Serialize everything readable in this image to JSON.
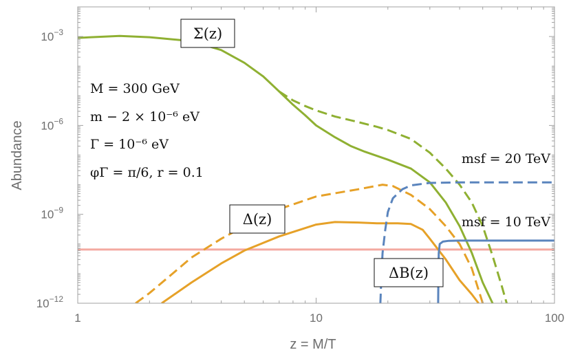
{
  "chart_data": {
    "type": "line",
    "title": "",
    "xlabel": "z = M/T",
    "ylabel": "Abundance",
    "xscale": "log",
    "yscale": "log",
    "xlim": [
      1,
      100
    ],
    "ylim": [
      1e-12,
      0.01
    ],
    "x_ticks": [
      {
        "value": 1,
        "label": "1"
      },
      {
        "value": 10,
        "label": "10"
      },
      {
        "value": 100,
        "label": "100"
      }
    ],
    "y_ticks": [
      {
        "value": 1e-12,
        "label": "10",
        "exp": "−12"
      },
      {
        "value": 1e-09,
        "label": "10",
        "exp": "−9"
      },
      {
        "value": 1e-06,
        "label": "10",
        "exp": "−6"
      },
      {
        "value": 0.001,
        "label": "10",
        "exp": "−3"
      }
    ],
    "grid": false,
    "annotations": {
      "params": [
        "M = 300 GeV",
        "m − 2 × 10⁻⁶ eV",
        "Γ = 10⁻⁶ eV",
        "φΓ = π/6,  r = 0.1"
      ],
      "sigma_label": "Σ(z)",
      "delta_label": "Δ(z)",
      "deltaB_label": "ΔB(z)",
      "msf20_label": "msf = 20 TeV",
      "msf10_label": "msf = 10 TeV"
    },
    "series": [
      {
        "key": "sigma_solid",
        "color": "#8fb032",
        "dash": false,
        "points": [
          [
            1,
            0.0009
          ],
          [
            1.5,
            0.00105
          ],
          [
            2,
            0.00095
          ],
          [
            3,
            0.0007
          ],
          [
            4,
            0.00035
          ],
          [
            5,
            0.00013
          ],
          [
            6,
            4.5e-05
          ],
          [
            7,
            1.4e-05
          ],
          [
            8,
            5e-06
          ],
          [
            9,
            2.2e-06
          ],
          [
            10,
            1e-06
          ],
          [
            12,
            4e-07
          ],
          [
            14,
            2e-07
          ],
          [
            16,
            1.3e-07
          ],
          [
            20,
            7e-08
          ],
          [
            25,
            3.5e-08
          ],
          [
            30,
            1.2e-08
          ],
          [
            35,
            2.5e-09
          ],
          [
            40,
            4e-10
          ],
          [
            45,
            5e-11
          ],
          [
            50,
            5e-12
          ],
          [
            55,
            1e-12
          ]
        ]
      },
      {
        "key": "sigma_dashed",
        "color": "#8fb032",
        "dash": true,
        "points": [
          [
            7,
            1.4e-05
          ],
          [
            8,
            7e-06
          ],
          [
            9,
            4.5e-06
          ],
          [
            10,
            3.2e-06
          ],
          [
            12,
            2e-06
          ],
          [
            15,
            1.3e-06
          ],
          [
            18,
            9e-07
          ],
          [
            20,
            7e-07
          ],
          [
            25,
            3.5e-07
          ],
          [
            30,
            1.2e-07
          ],
          [
            35,
            3.5e-08
          ],
          [
            40,
            1e-08
          ],
          [
            45,
            2.5e-09
          ],
          [
            50,
            4e-10
          ],
          [
            55,
            4e-11
          ],
          [
            60,
            4e-12
          ],
          [
            63,
            1e-12
          ]
        ]
      },
      {
        "key": "delta_solid",
        "color": "#e6a128",
        "dash": false,
        "points": [
          [
            2.25,
            1e-12
          ],
          [
            3,
            5e-12
          ],
          [
            4,
            2.2e-11
          ],
          [
            5,
            6e-11
          ],
          [
            7,
            1.8e-10
          ],
          [
            10,
            4.5e-10
          ],
          [
            12,
            5.5e-10
          ],
          [
            15,
            5.3e-10
          ],
          [
            18,
            5e-10
          ],
          [
            22,
            5e-10
          ],
          [
            25,
            4.7e-10
          ],
          [
            28,
            3e-10
          ],
          [
            30,
            1.5e-10
          ],
          [
            35,
            3e-11
          ],
          [
            40,
            6e-12
          ],
          [
            45,
            2e-12
          ],
          [
            48,
            1e-12
          ]
        ]
      },
      {
        "key": "delta_dashed",
        "color": "#e6a128",
        "dash": true,
        "points": [
          [
            1.75,
            1e-12
          ],
          [
            2,
            2.2e-12
          ],
          [
            2.5,
            1e-11
          ],
          [
            3,
            3.5e-11
          ],
          [
            4,
            1.5e-10
          ],
          [
            5,
            4e-10
          ],
          [
            7,
            1.5e-09
          ],
          [
            10,
            4e-09
          ],
          [
            15,
            7e-09
          ],
          [
            19,
            1e-08
          ],
          [
            21,
            9e-09
          ],
          [
            25,
            4.5e-09
          ],
          [
            30,
            1.5e-09
          ],
          [
            35,
            4e-10
          ],
          [
            40,
            1e-10
          ],
          [
            45,
            1.5e-11
          ],
          [
            50,
            1e-12
          ]
        ]
      },
      {
        "key": "deltaB_20",
        "color": "#5a84bd",
        "dash": true,
        "points": [
          [
            18.6,
            1e-12
          ],
          [
            18.7,
            3e-12
          ],
          [
            18.8,
            1e-11
          ],
          [
            19,
            5e-11
          ],
          [
            19.5,
            3e-10
          ],
          [
            20,
            1.2e-09
          ],
          [
            21,
            3.5e-09
          ],
          [
            23,
            7e-09
          ],
          [
            25,
            9.5e-09
          ],
          [
            30,
            1.15e-08
          ],
          [
            40,
            1.2e-08
          ],
          [
            60,
            1.2e-08
          ],
          [
            100,
            1.2e-08
          ]
        ]
      },
      {
        "key": "deltaB_10",
        "color": "#5a84bd",
        "dash": false,
        "points": [
          [
            32.5,
            1e-12
          ],
          [
            32.6,
            1e-11
          ],
          [
            32.7,
            5e-11
          ],
          [
            33,
            1e-10
          ],
          [
            34,
            1.2e-10
          ],
          [
            36,
            1.28e-10
          ],
          [
            40,
            1.3e-10
          ],
          [
            60,
            1.3e-10
          ],
          [
            100,
            1.3e-10
          ]
        ]
      },
      {
        "key": "baseline",
        "color": "#f4a9a0",
        "dash": false,
        "points": [
          [
            1,
            6.5e-11
          ],
          [
            100,
            6.5e-11
          ]
        ]
      }
    ]
  }
}
